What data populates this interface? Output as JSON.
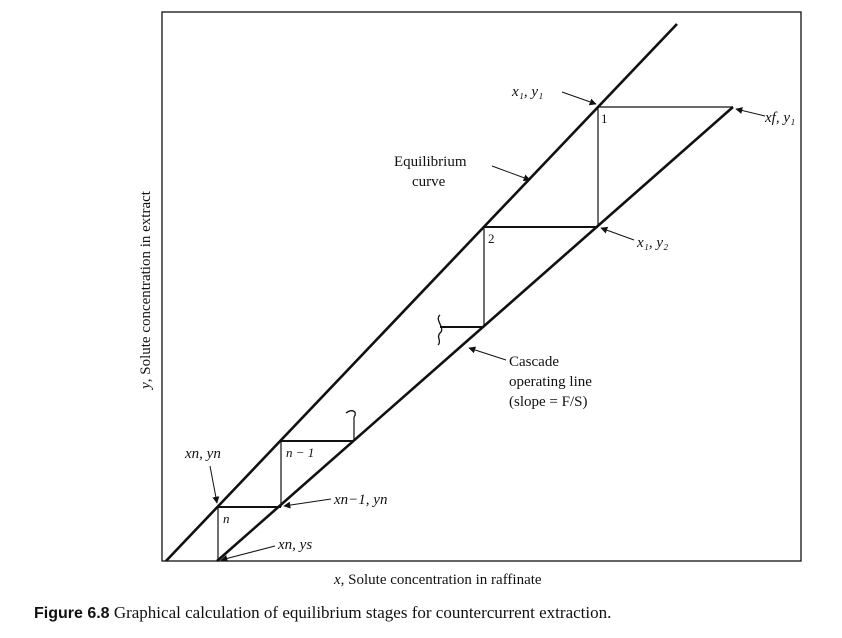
{
  "axes": {
    "xlabel_var": "x",
    "xlabel_text": ", Solute concentration in raffinate",
    "ylabel_var": "y",
    "ylabel_text": ", Solute concentration in extract"
  },
  "curves": {
    "equilibrium_line1": "Equilibrium",
    "equilibrium_line2": "curve",
    "operating_line1": "Cascade",
    "operating_line2": "operating line",
    "operating_line3": "(slope = F/S)"
  },
  "points": {
    "top_left": "x₁, y₁",
    "top_right": "xf, y₁",
    "mid_right": "x₁, y₂",
    "low_left": "xn, yn",
    "low_mid": "xn−1, yn",
    "bottom": "xn, ys"
  },
  "stages": {
    "s1": "1",
    "s2": "2",
    "sn_minus_1": "n − 1",
    "sn": "n"
  },
  "caption": {
    "label": "Figure 6.8",
    "text": "Graphical calculation of equilibrium stages for countercurrent extraction."
  }
}
